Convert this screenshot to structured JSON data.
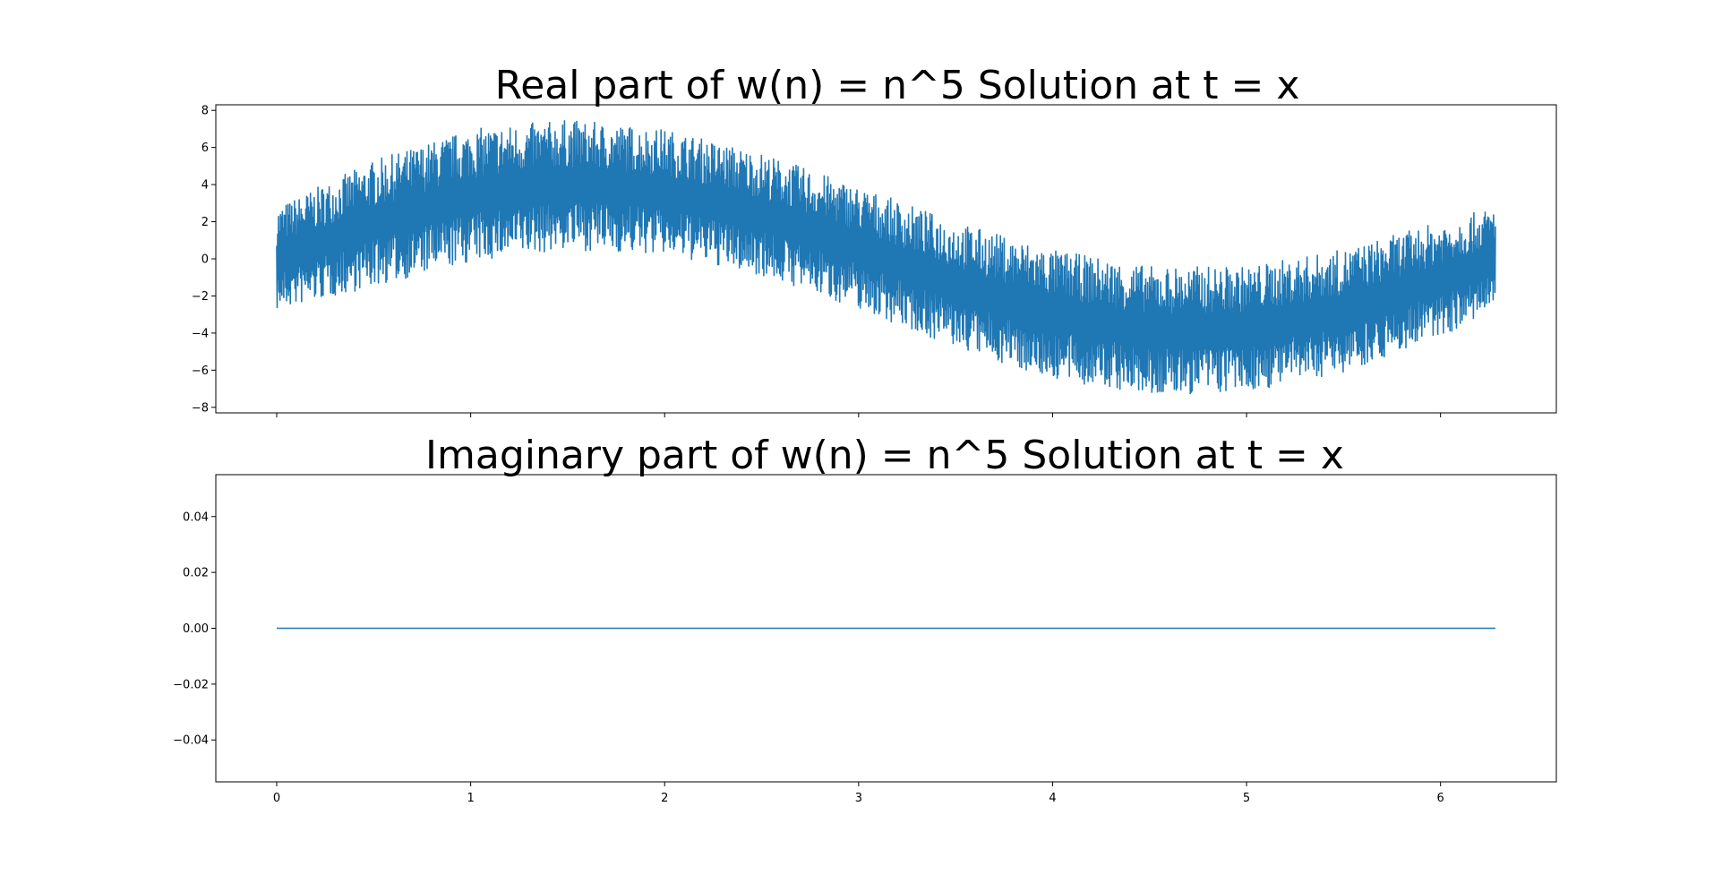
{
  "line_color": "#1f77b4",
  "chart_data": [
    {
      "type": "line",
      "title": "Real part of w(n) = n^5 Solution at t = x",
      "xlabel": "",
      "ylabel": "",
      "xlim": [
        -0.314,
        6.597
      ],
      "ylim": [
        -8.3,
        8.3
      ],
      "x_ticks": [
        0,
        1,
        2,
        3,
        4,
        5,
        6
      ],
      "x_tick_labels_visible": false,
      "y_ticks": [
        -8,
        -6,
        -4,
        -2,
        0,
        2,
        4,
        6,
        8
      ],
      "y_tick_labels": [
        "−8",
        "−6",
        "−4",
        "−2",
        "0",
        "2",
        "4",
        "6",
        "8"
      ],
      "x_range": [
        0,
        6.283
      ],
      "approximate_shape": "oscillation between about -7.5 and 7.5 with envelope centred on 4*sin(x)",
      "series": [
        {
          "x": [
            0,
            0.5,
            1.0,
            1.5,
            2.0,
            2.5,
            3.0,
            3.5,
            4.0,
            4.5,
            5.0,
            5.5,
            6.0,
            6.283
          ],
          "center": [
            0.0,
            1.9,
            3.4,
            4.0,
            3.6,
            2.4,
            0.6,
            -1.4,
            -3.0,
            -3.9,
            -3.8,
            -2.8,
            -1.1,
            0.0
          ],
          "half_band": [
            2.8,
            3.4,
            3.6,
            3.5,
            3.4,
            3.3,
            3.3,
            3.4,
            3.5,
            3.5,
            3.4,
            3.3,
            3.1,
            2.8
          ]
        }
      ],
      "grid": false,
      "legend": "none"
    },
    {
      "type": "line",
      "title": "Imaginary part of w(n) = n^5 Solution at t = x",
      "xlabel": "",
      "ylabel": "",
      "xlim": [
        -0.314,
        6.597
      ],
      "ylim": [
        -0.055,
        0.055
      ],
      "x_ticks": [
        0,
        1,
        2,
        3,
        4,
        5,
        6
      ],
      "x_tick_labels": [
        "0",
        "1",
        "2",
        "3",
        "4",
        "5",
        "6"
      ],
      "y_ticks": [
        -0.04,
        -0.02,
        0.0,
        0.02,
        0.04
      ],
      "y_tick_labels": [
        "−0.04",
        "−0.02",
        "0.00",
        "0.02",
        "0.04"
      ],
      "series": [
        {
          "x": [
            0,
            6.283
          ],
          "y": [
            0,
            0
          ]
        }
      ],
      "grid": false,
      "legend": "none"
    }
  ]
}
